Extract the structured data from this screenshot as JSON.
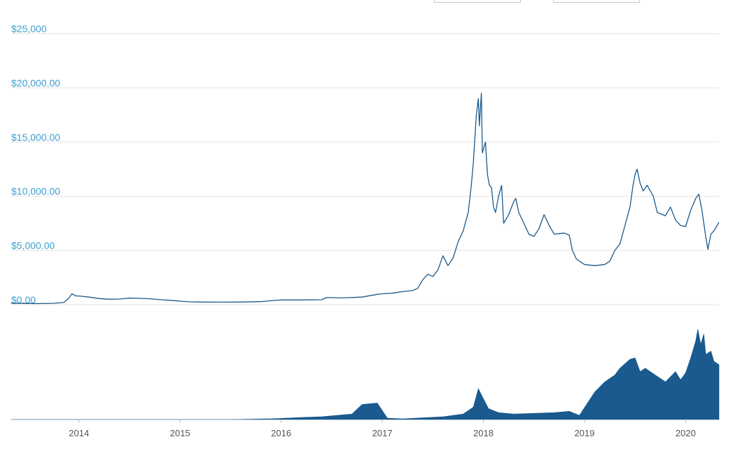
{
  "chart_data": {
    "type": "line",
    "title": "",
    "xlabel": "",
    "ylabel": "",
    "ylim": [
      0,
      25000
    ],
    "y_ticks": [
      "$25,000",
      "$20,000.00",
      "$15,000.00",
      "$10,000.00",
      "$5,000.00",
      "$0.00"
    ],
    "y_tick_values": [
      25000,
      20000,
      15000,
      10000,
      5000,
      0
    ],
    "x_ticks": [
      "2014",
      "2015",
      "2016",
      "2017",
      "2018",
      "2019",
      "2020"
    ],
    "x_tick_values": [
      2014.0,
      2015.0,
      2016.0,
      2017.0,
      2018.0,
      2019.0,
      2020.0
    ],
    "xlim": [
      2013.33,
      2020.33
    ],
    "grid": true,
    "colors": {
      "line": "#1a5a8e",
      "volume": "#1a5a8e",
      "tick_label_y": "#3d9fd0",
      "tick_label_x": "#555555"
    },
    "series": [
      {
        "x": [
          2013.33,
          2013.5,
          2013.6,
          2013.75,
          2013.85,
          2013.9,
          2013.93,
          2013.97,
          2014.0,
          2014.1,
          2014.2,
          2014.3,
          2014.4,
          2014.5,
          2014.6,
          2014.7,
          2014.8,
          2014.9,
          2015.0,
          2015.1,
          2015.2,
          2015.4,
          2015.6,
          2015.8,
          2015.9,
          2016.0,
          2016.2,
          2016.4,
          2016.45,
          2016.6,
          2016.8,
          2016.95,
          2017.0,
          2017.1,
          2017.2,
          2017.3,
          2017.35,
          2017.4,
          2017.45,
          2017.5,
          2017.55,
          2017.6,
          2017.65,
          2017.7,
          2017.75,
          2017.8,
          2017.85,
          2017.88,
          2017.9,
          2017.93,
          2017.95,
          2017.96,
          2017.98,
          2017.99,
          2018.02,
          2018.04,
          2018.06,
          2018.08,
          2018.1,
          2018.12,
          2018.15,
          2018.18,
          2018.2,
          2018.25,
          2018.3,
          2018.32,
          2018.35,
          2018.4,
          2018.45,
          2018.5,
          2018.55,
          2018.6,
          2018.65,
          2018.7,
          2018.8,
          2018.85,
          2018.88,
          2018.92,
          2019.0,
          2019.1,
          2019.2,
          2019.25,
          2019.3,
          2019.35,
          2019.4,
          2019.45,
          2019.48,
          2019.5,
          2019.52,
          2019.55,
          2019.58,
          2019.62,
          2019.68,
          2019.72,
          2019.8,
          2019.85,
          2019.9,
          2019.95,
          2020.0,
          2020.05,
          2020.1,
          2020.13,
          2020.16,
          2020.2,
          2020.22,
          2020.25,
          2020.28,
          2020.33
        ],
        "values": [
          120,
          110,
          100,
          120,
          200,
          600,
          1000,
          800,
          800,
          700,
          560,
          500,
          520,
          600,
          580,
          540,
          460,
          400,
          320,
          260,
          240,
          230,
          240,
          280,
          360,
          430,
          430,
          450,
          650,
          620,
          700,
          950,
          1000,
          1050,
          1200,
          1300,
          1500,
          2300,
          2800,
          2600,
          3200,
          4500,
          3600,
          4300,
          5800,
          6800,
          8500,
          11000,
          13000,
          17500,
          19000,
          16500,
          19500,
          14000,
          15000,
          12000,
          11000,
          10800,
          9000,
          8500,
          10000,
          11000,
          7500,
          8300,
          9500,
          9800,
          8500,
          7500,
          6500,
          6300,
          7000,
          8300,
          7300,
          6500,
          6600,
          6400,
          5000,
          4200,
          3700,
          3600,
          3700,
          4000,
          5000,
          5600,
          7300,
          9000,
          11000,
          12000,
          12500,
          11200,
          10500,
          11000,
          10000,
          8500,
          8200,
          9000,
          7800,
          7300,
          7200,
          8700,
          9800,
          10200,
          8800,
          6200,
          5100,
          6500,
          6800,
          7600
        ]
      }
    ],
    "volume": {
      "x": [
        2013.33,
        2013.9,
        2014.5,
        2015.5,
        2015.9,
        2016.2,
        2016.4,
        2016.7,
        2016.8,
        2016.95,
        2017.05,
        2017.2,
        2017.6,
        2017.8,
        2017.9,
        2017.95,
        2017.98,
        2018.05,
        2018.15,
        2018.3,
        2018.5,
        2018.7,
        2018.85,
        2018.95,
        2019.1,
        2019.2,
        2019.3,
        2019.35,
        2019.45,
        2019.5,
        2019.55,
        2019.6,
        2019.7,
        2019.8,
        2019.9,
        2019.95,
        2020.0,
        2020.05,
        2020.1,
        2020.12,
        2020.15,
        2020.18,
        2020.2,
        2020.25,
        2020.28,
        2020.33
      ],
      "values": [
        0,
        0,
        0,
        0,
        1,
        3,
        4,
        8,
        22,
        24,
        2,
        1,
        4,
        8,
        18,
        45,
        36,
        16,
        10,
        8,
        9,
        10,
        12,
        6,
        40,
        55,
        65,
        75,
        88,
        90,
        70,
        75,
        65,
        55,
        70,
        58,
        68,
        90,
        115,
        132,
        110,
        125,
        95,
        100,
        85,
        80
      ]
    }
  }
}
